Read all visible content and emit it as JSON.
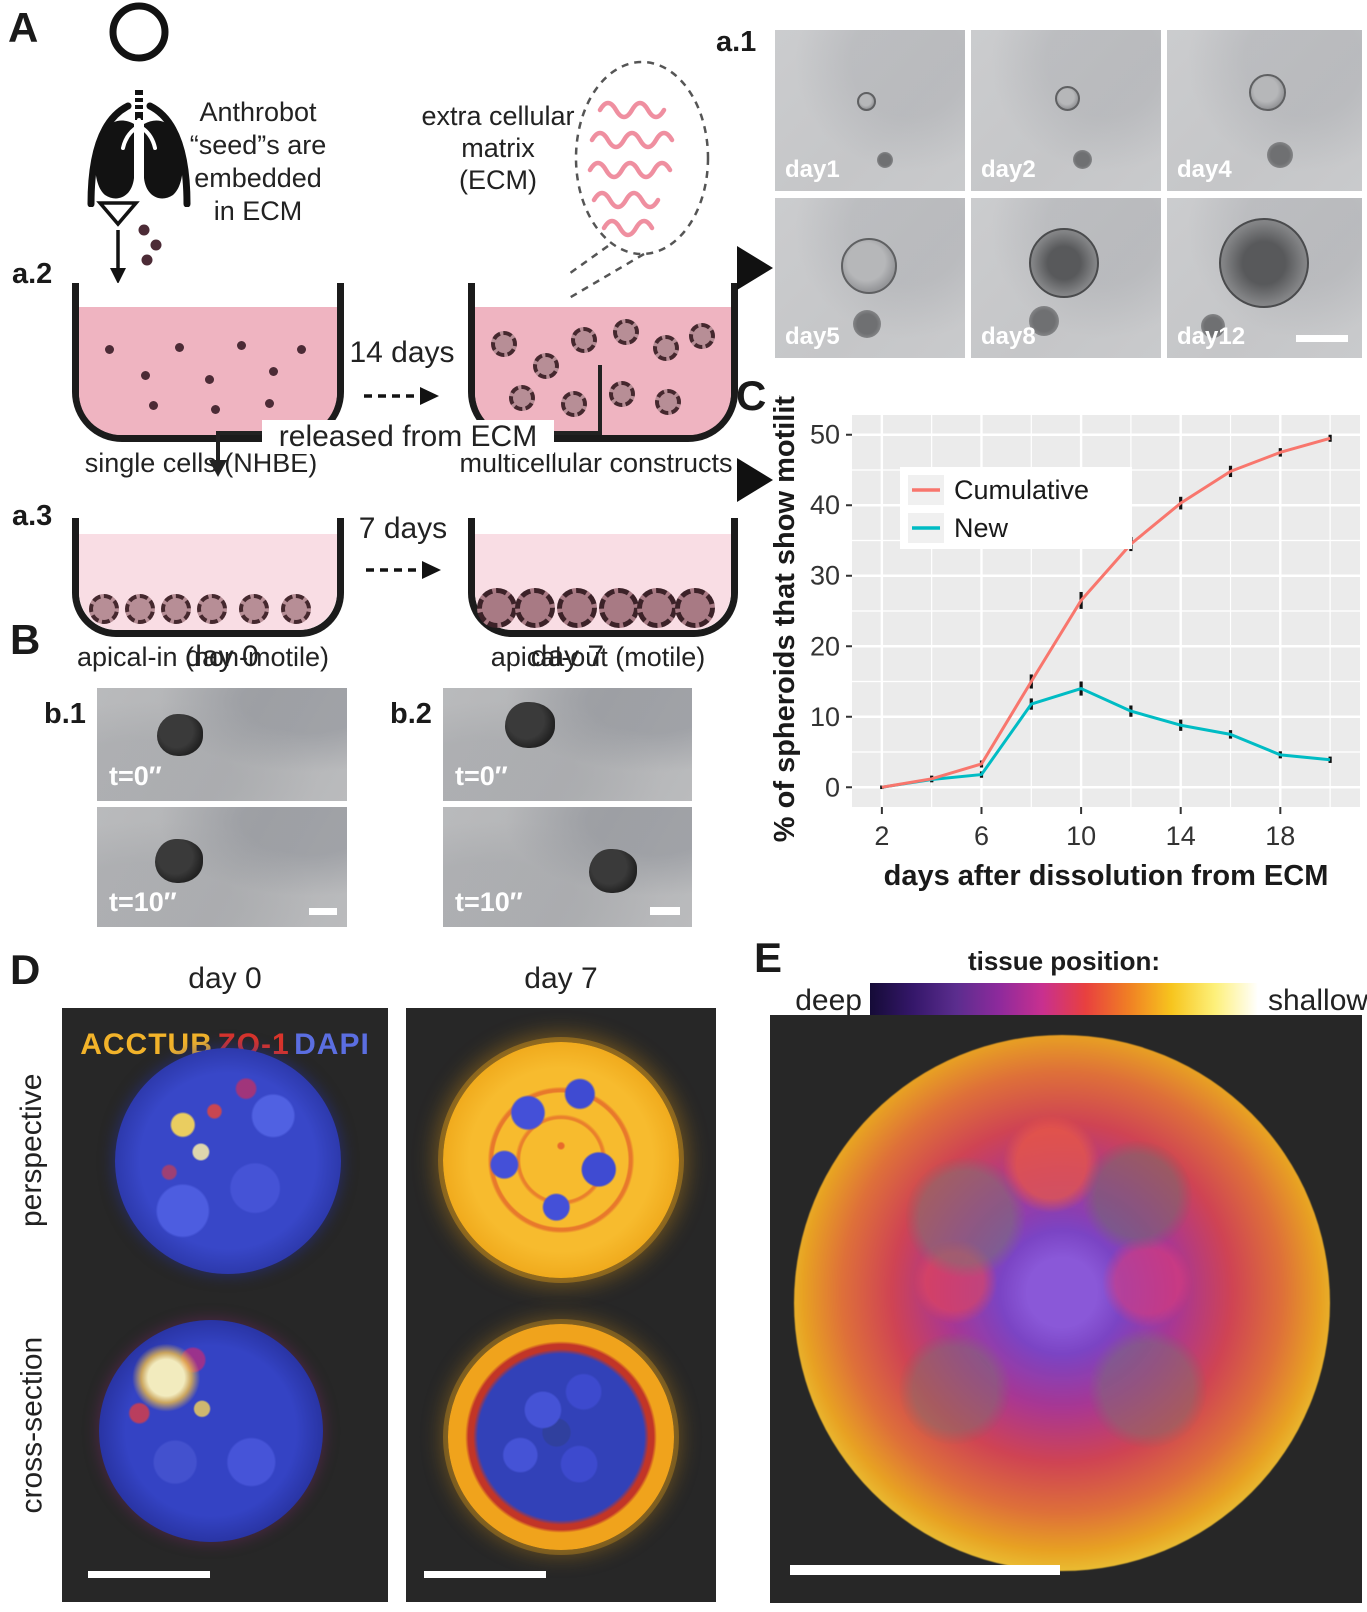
{
  "panels": {
    "A": {
      "label": "A",
      "a2": "a.2",
      "a3": "a.3",
      "seed_lines": [
        "Anthrobot",
        "“seed”s are",
        "embedded",
        "in ECM"
      ],
      "ecm_lines": [
        "extra cellular",
        "matrix (ECM)"
      ],
      "arrow1": "14 days",
      "arrow2": "7 days",
      "released": "released from ECM",
      "dish1_caption": "single cells (NHBE)",
      "dish2_caption": "multicellular constructs",
      "dish3_caption": "apical-in (non-motile)",
      "dish4_caption": "apical-out (motile)"
    },
    "a1": {
      "label": "a.1",
      "days": [
        "day1",
        "day2",
        "day4",
        "day5",
        "day8",
        "day12"
      ]
    },
    "B": {
      "label": "B",
      "b1": "b.1",
      "b2": "b.2",
      "day0": "day 0",
      "day7": "day 7",
      "t0": "t=0″",
      "t10": "t=10″"
    },
    "C": {
      "label": "C"
    },
    "D": {
      "label": "D",
      "day0": "day 0",
      "day7": "day 7",
      "row1": "perspective",
      "row2": "cross-section",
      "stains": [
        {
          "name": "ACCTUB",
          "color": "#f2b32a"
        },
        {
          "name": "ZO-1",
          "color": "#d9342b"
        },
        {
          "name": "DAPI",
          "color": "#5b6ee1"
        }
      ]
    },
    "E": {
      "label": "E",
      "title": "tissue position:",
      "deep": "deep",
      "shallow": "shallow",
      "colorbar_colors": [
        "#150b37",
        "#35176a",
        "#5b2d8e",
        "#8e2a9c",
        "#c8308f",
        "#e8403f",
        "#f07f24",
        "#f7c51e",
        "#fdf07a",
        "#ffffff"
      ]
    }
  },
  "chart_data": {
    "type": "line",
    "title": "",
    "xlabel": "days after dissolution from ECM",
    "ylabel": "% of spheroids that show motility",
    "x": [
      2,
      4,
      6,
      8,
      10,
      12,
      14,
      16,
      18,
      20
    ],
    "xticks": [
      2,
      6,
      10,
      14,
      18
    ],
    "yticks": [
      0,
      10,
      20,
      30,
      40,
      50
    ],
    "xlim": [
      0.8,
      21.2
    ],
    "ylim": [
      -2.8,
      52.8
    ],
    "grid": true,
    "legend_position": "upper-left-inside",
    "panel_bg": "#ebebeb",
    "grid_color": "#ffffff",
    "series": [
      {
        "name": "New",
        "color": "#00BCC4",
        "values": [
          0,
          1.1,
          1.8,
          11.8,
          14.0,
          10.8,
          8.8,
          7.5,
          4.6,
          3.9
        ],
        "errors": [
          0.25,
          0.4,
          0.45,
          0.8,
          1.0,
          0.8,
          0.8,
          0.6,
          0.5,
          0.45
        ]
      },
      {
        "name": "Cumulative",
        "color": "#F8766D",
        "values": [
          0,
          1.2,
          3.3,
          15.0,
          26.5,
          34.5,
          40.3,
          44.8,
          47.5,
          49.5
        ],
        "errors": [
          0.25,
          0.45,
          0.5,
          1.0,
          1.2,
          1.0,
          0.9,
          0.8,
          0.6,
          0.5
        ]
      }
    ]
  }
}
